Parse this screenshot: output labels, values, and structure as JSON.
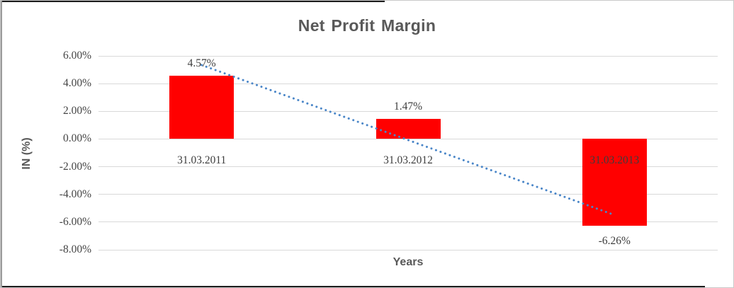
{
  "chart_data": {
    "type": "bar",
    "title": "Net Profit Margin",
    "xlabel": "Years",
    "ylabel": "IN (%)",
    "categories": [
      "31.03.2011",
      "31.03.2012",
      "31.03.2013"
    ],
    "series": [
      {
        "name": "Net Profit Margin",
        "values": [
          4.57,
          1.47,
          -6.26
        ]
      }
    ],
    "data_labels": [
      "4.57%",
      "1.47%",
      "-6.26%"
    ],
    "ylim": [
      -8,
      6
    ],
    "ytick_step": 2,
    "ytick_labels": [
      "6.00%",
      "4.00%",
      "2.00%",
      "0.00%",
      "-2.00%",
      "-4.00%",
      "-6.00%",
      "-8.00%"
    ],
    "grid": true,
    "legend": "none",
    "bar_color": "#ff0000",
    "gridline_color": "#d9d9d9",
    "trendline": {
      "style": "dotted",
      "color": "#4a86c8",
      "start_value": 5.34,
      "end_value": -5.49
    }
  },
  "colors": {
    "title_text": "#595959",
    "label_text": "#3d3d3d",
    "bar": "#ff0000",
    "trendline": "#4a86c8",
    "gridline": "#d9d9d9"
  }
}
